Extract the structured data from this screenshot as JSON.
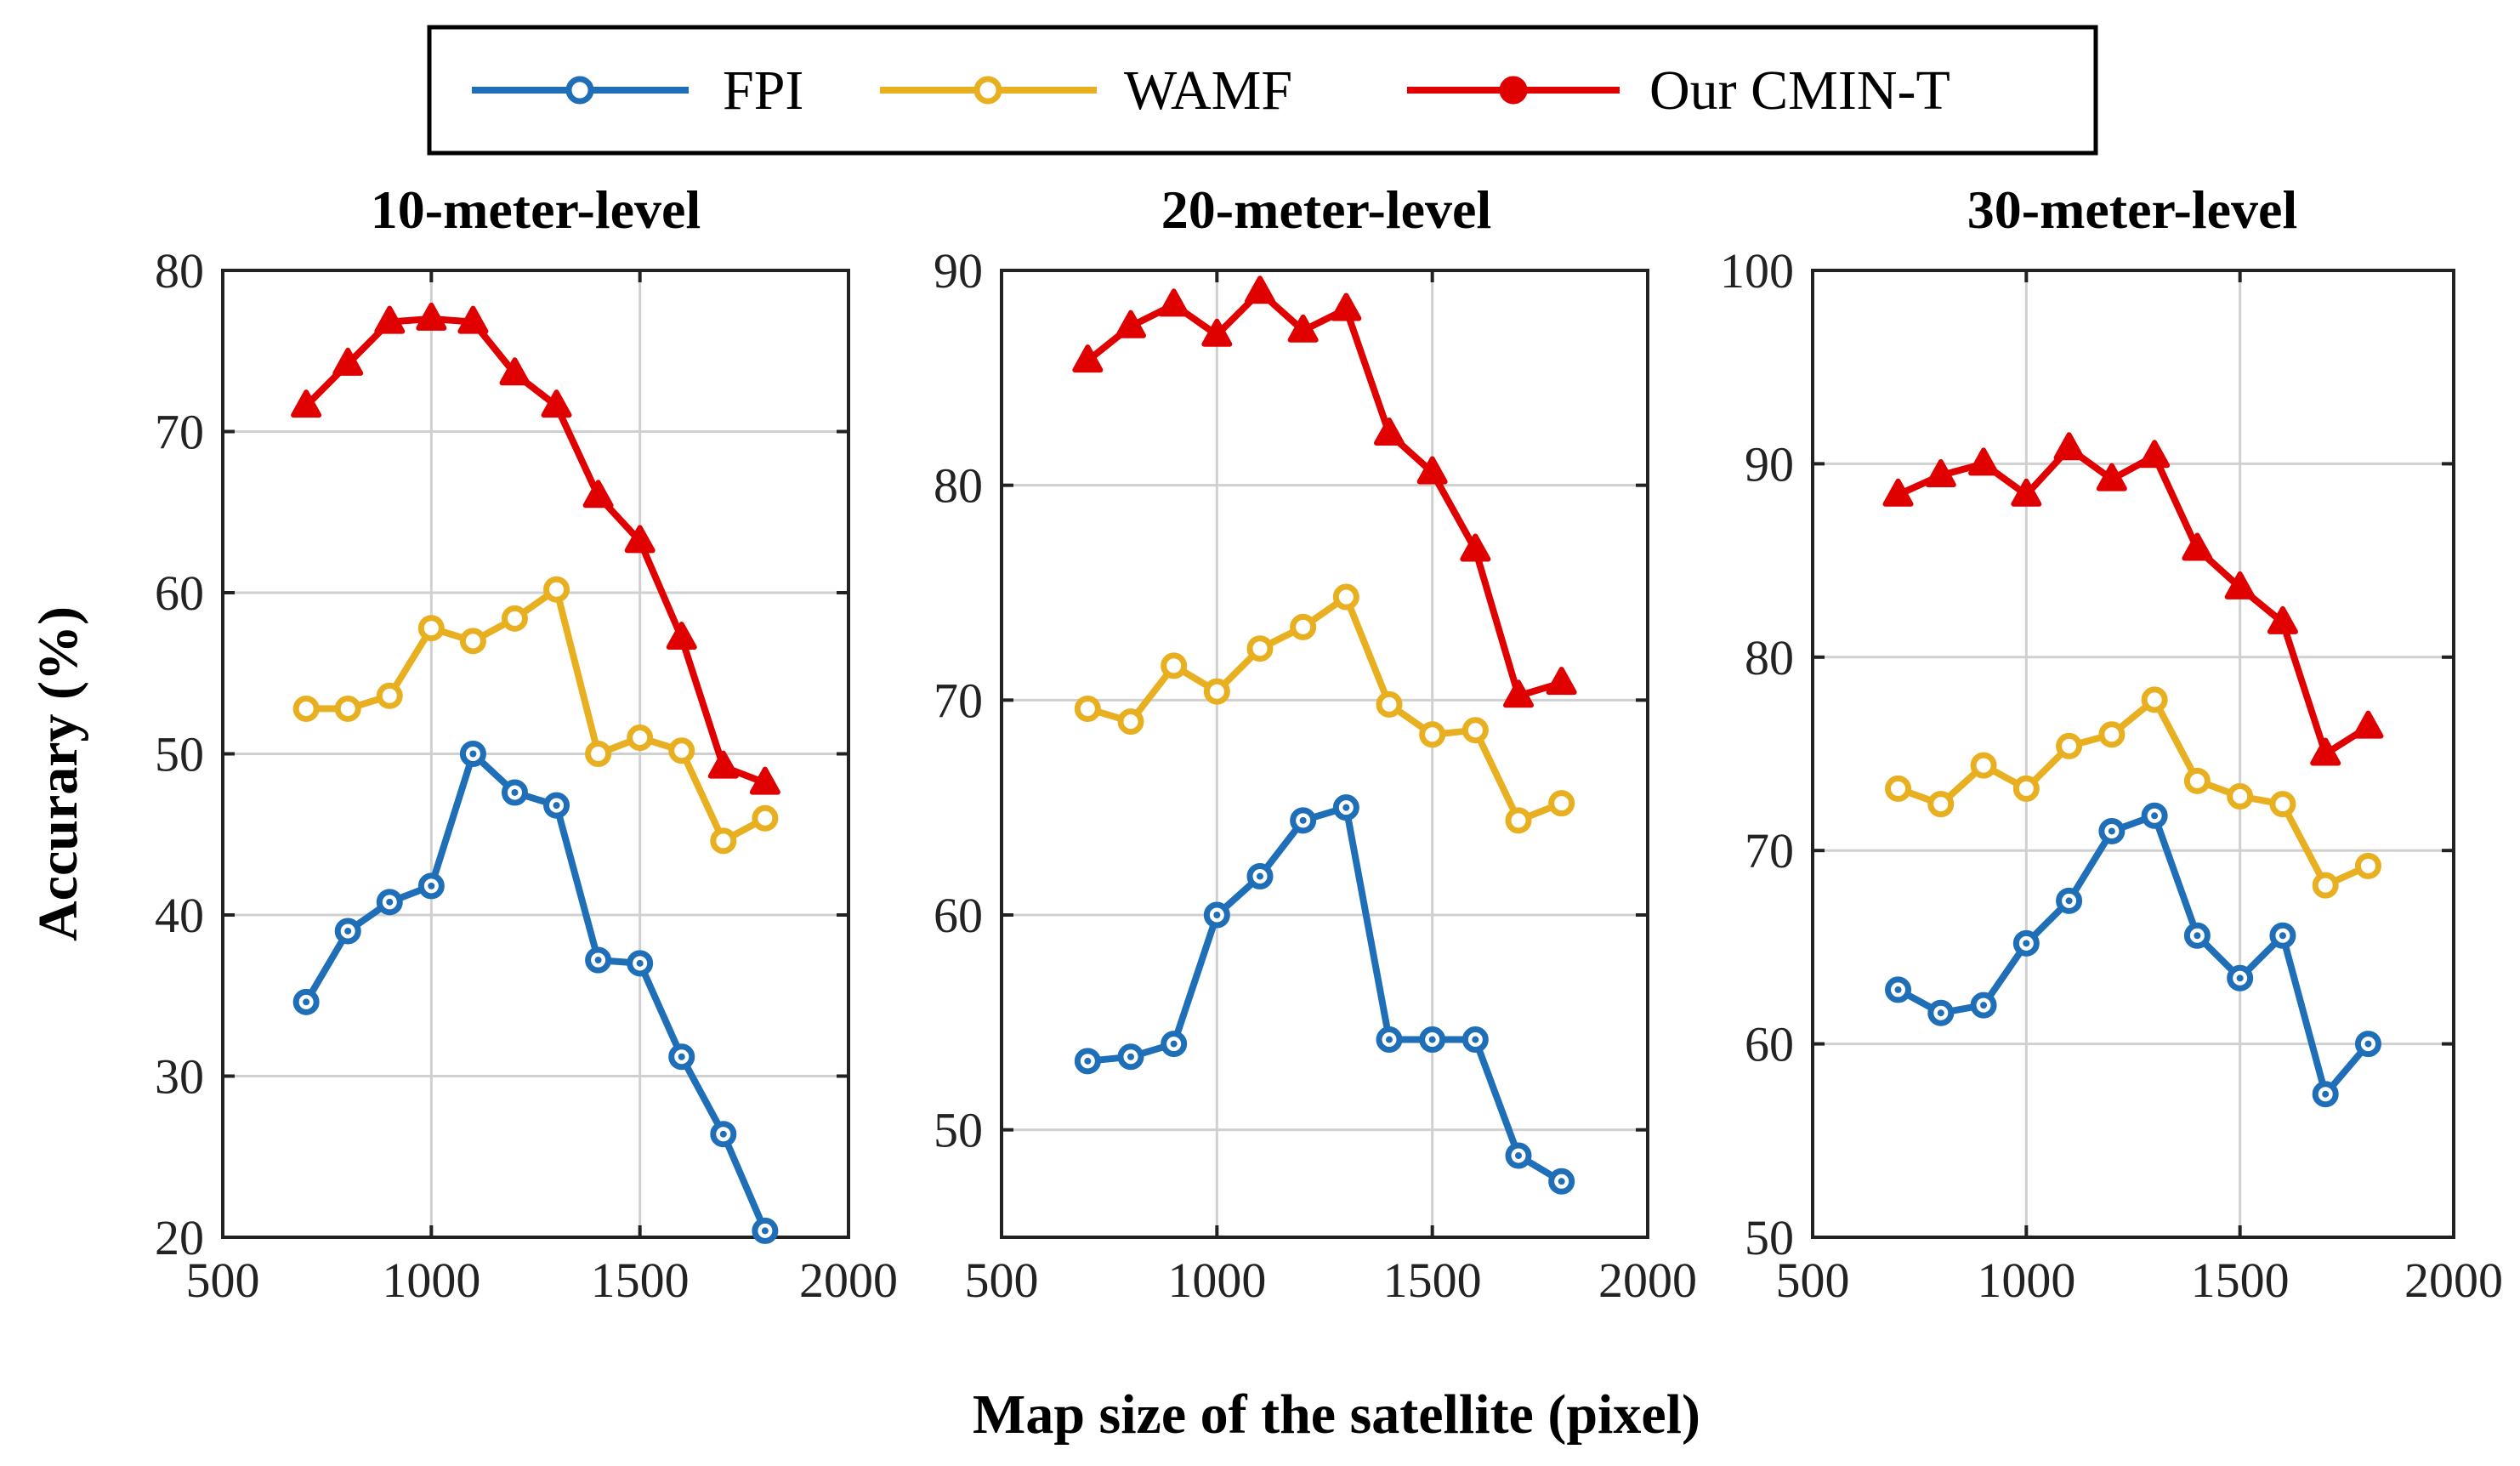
{
  "legend": {
    "entries": [
      {
        "name": "FPI",
        "color": "#1f6fb8"
      },
      {
        "name": "WAMF",
        "color": "#e8b020"
      },
      {
        "name": "Our CMIN-T",
        "color": "#e00000"
      }
    ]
  },
  "xlabel": "Map size of the satellite (pixel)",
  "ylabel": "Accurary (%)",
  "chart_data": [
    {
      "type": "line",
      "title": "10-meter-level",
      "x": [
        700,
        800,
        900,
        1000,
        1100,
        1200,
        1300,
        1400,
        1500,
        1600,
        1700,
        1800
      ],
      "xlim": [
        500,
        2000
      ],
      "ylim": [
        20,
        80
      ],
      "xticks": [
        500,
        1000,
        1500,
        2000
      ],
      "yticks": [
        20,
        30,
        40,
        50,
        60,
        70,
        80
      ],
      "grid": true,
      "series": [
        {
          "name": "FPI",
          "values": [
            34.6,
            39.0,
            40.8,
            41.8,
            50.0,
            47.6,
            46.8,
            37.2,
            37.0,
            31.2,
            26.4,
            20.4
          ]
        },
        {
          "name": "WAMF",
          "values": [
            52.8,
            52.8,
            53.6,
            57.8,
            57.0,
            58.4,
            60.2,
            50.0,
            51.0,
            50.2,
            44.6,
            46.0
          ]
        },
        {
          "name": "Our CMIN-T",
          "values": [
            71.6,
            74.2,
            76.8,
            77.0,
            76.8,
            73.6,
            71.6,
            66.0,
            63.2,
            57.2,
            49.2,
            48.2
          ]
        }
      ]
    },
    {
      "type": "line",
      "title": "20-meter-level",
      "x": [
        700,
        800,
        900,
        1000,
        1100,
        1200,
        1300,
        1400,
        1500,
        1600,
        1700,
        1800
      ],
      "xlim": [
        500,
        2000
      ],
      "ylim": [
        45,
        90
      ],
      "xticks": [
        500,
        1000,
        1500,
        2000
      ],
      "yticks": [
        50,
        60,
        70,
        80,
        90
      ],
      "grid": true,
      "series": [
        {
          "name": "FPI",
          "values": [
            53.2,
            53.4,
            54.0,
            60.0,
            61.8,
            64.4,
            65.0,
            54.2,
            54.2,
            54.2,
            48.8,
            47.6
          ]
        },
        {
          "name": "WAMF",
          "values": [
            69.6,
            69.0,
            71.6,
            70.4,
            72.4,
            73.4,
            74.8,
            69.8,
            68.4,
            68.6,
            64.4,
            65.2
          ]
        },
        {
          "name": "Our CMIN-T",
          "values": [
            85.8,
            87.4,
            88.4,
            87.0,
            89.0,
            87.2,
            88.2,
            82.4,
            80.6,
            77.0,
            70.2,
            70.8
          ]
        }
      ]
    },
    {
      "type": "line",
      "title": "30-meter-level",
      "x": [
        700,
        800,
        900,
        1000,
        1100,
        1200,
        1300,
        1400,
        1500,
        1600,
        1700,
        1800
      ],
      "xlim": [
        500,
        2000
      ],
      "ylim": [
        50,
        100
      ],
      "xticks": [
        500,
        1000,
        1500,
        2000
      ],
      "yticks": [
        50,
        60,
        70,
        80,
        90,
        100
      ],
      "grid": true,
      "series": [
        {
          "name": "FPI",
          "values": [
            62.8,
            61.6,
            62.0,
            65.2,
            67.4,
            71.0,
            71.8,
            65.6,
            63.4,
            65.6,
            57.4,
            60.0
          ]
        },
        {
          "name": "WAMF",
          "values": [
            73.2,
            72.4,
            74.4,
            73.2,
            75.4,
            76.0,
            77.8,
            73.6,
            72.8,
            72.4,
            68.2,
            69.2
          ]
        },
        {
          "name": "Our CMIN-T",
          "values": [
            88.4,
            89.4,
            90.0,
            88.4,
            90.8,
            89.2,
            90.4,
            85.6,
            83.6,
            81.8,
            75.0,
            76.4
          ]
        }
      ]
    }
  ]
}
